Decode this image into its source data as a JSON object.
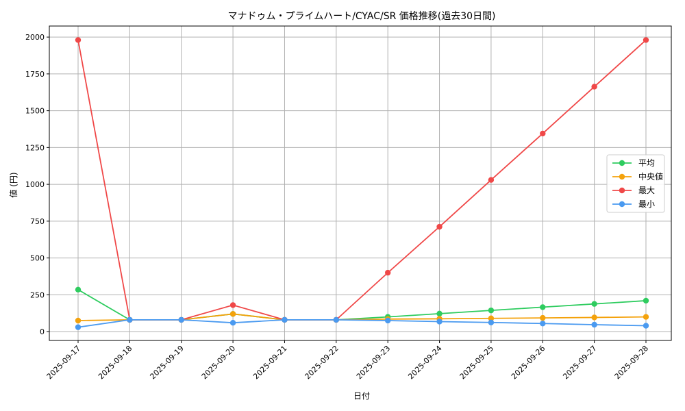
{
  "chart_data": {
    "type": "line",
    "title": "マナドゥム・プライムハート/CYAC/SR 価格推移(過去30日間)",
    "xlabel": "日付",
    "ylabel": "値 (円)",
    "categories": [
      "2025-09-17",
      "2025-09-18",
      "2025-09-19",
      "2025-09-20",
      "2025-09-21",
      "2025-09-22",
      "2025-09-23",
      "2025-09-24",
      "2025-09-25",
      "2025-09-26",
      "2025-09-27",
      "2025-09-28"
    ],
    "ylim": [
      -60,
      2075
    ],
    "yticks": [
      0,
      250,
      500,
      750,
      1000,
      1250,
      1500,
      1750,
      2000
    ],
    "grid": true,
    "legend_position": "center-right",
    "series": [
      {
        "name": "平均",
        "color": "#2ecc5f",
        "values": [
          285,
          80,
          80,
          120,
          80,
          80,
          100,
          122,
          144,
          166,
          188,
          210
        ]
      },
      {
        "name": "中央値",
        "color": "#f4a20c",
        "values": [
          75,
          80,
          80,
          120,
          80,
          80,
          85,
          87,
          90,
          93,
          96,
          100
        ]
      },
      {
        "name": "最大",
        "color": "#f04848",
        "values": [
          1980,
          80,
          80,
          180,
          80,
          80,
          400,
          712,
          1030,
          1345,
          1663,
          1980
        ]
      },
      {
        "name": "最小",
        "color": "#4a9af0",
        "values": [
          30,
          80,
          80,
          60,
          80,
          80,
          75,
          68,
          62,
          55,
          47,
          40
        ]
      }
    ]
  }
}
